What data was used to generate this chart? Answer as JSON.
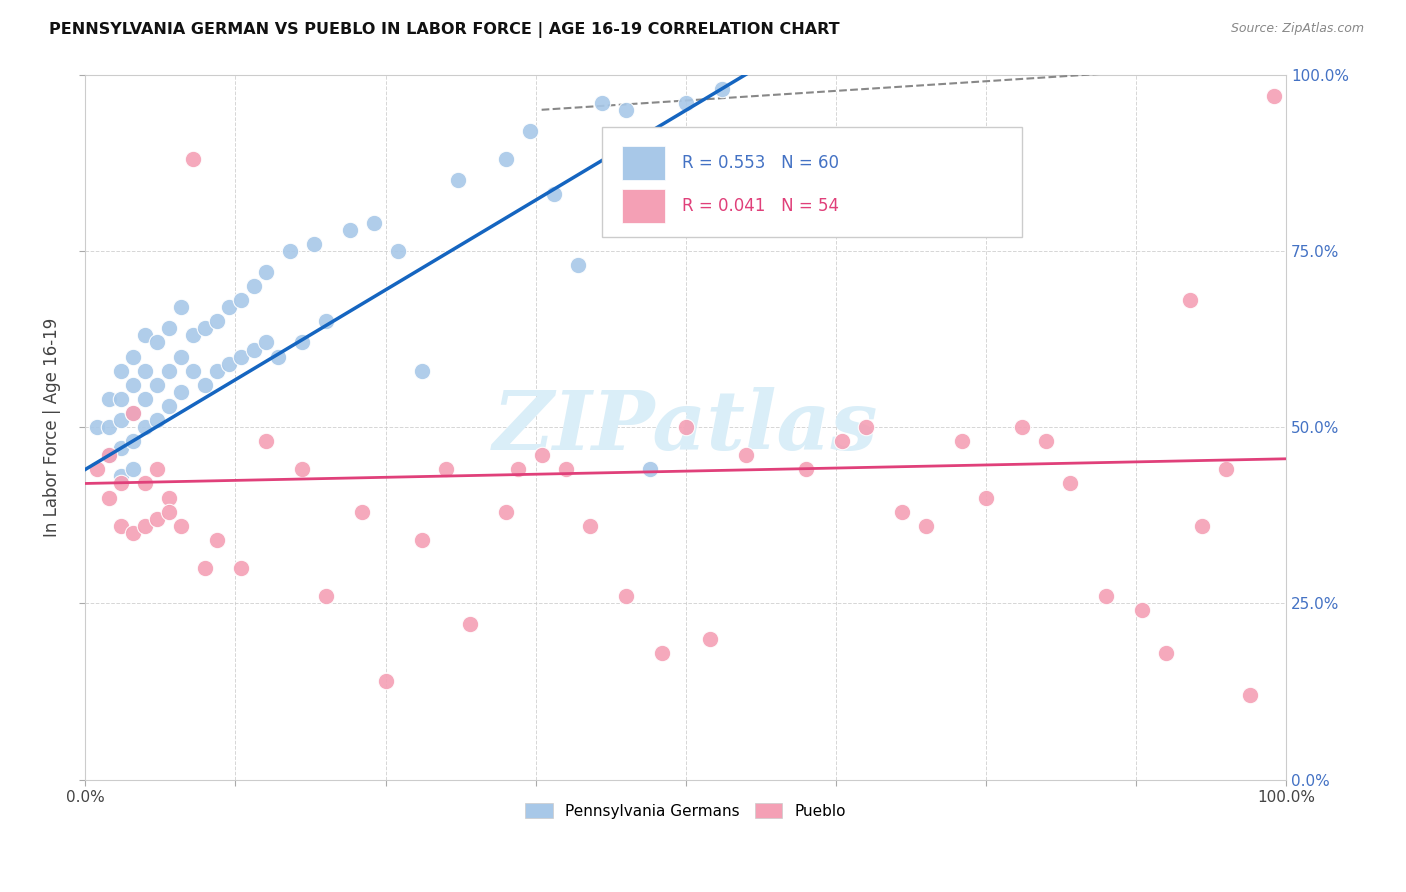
{
  "title": "PENNSYLVANIA GERMAN VS PUEBLO IN LABOR FORCE | AGE 16-19 CORRELATION CHART",
  "source": "Source: ZipAtlas.com",
  "ylabel": "In Labor Force | Age 16-19",
  "xlim": [
    0,
    1
  ],
  "ylim": [
    0,
    1
  ],
  "xticks": [
    0,
    0.125,
    0.25,
    0.375,
    0.5,
    0.625,
    0.75,
    0.875,
    1.0
  ],
  "yticks": [
    0,
    0.25,
    0.5,
    0.75,
    1.0
  ],
  "right_ytick_labels": [
    "0.0%",
    "25.0%",
    "50.0%",
    "75.0%",
    "100.0%"
  ],
  "left_ytick_labels": [
    "",
    "",
    "",
    "",
    ""
  ],
  "blue_color": "#a8c8e8",
  "pink_color": "#f4a0b5",
  "blue_line_color": "#1565c0",
  "pink_line_color": "#e0407a",
  "watermark_color": "#daeef8",
  "blue_scatter_x": [
    0.01,
    0.02,
    0.02,
    0.02,
    0.03,
    0.03,
    0.03,
    0.03,
    0.03,
    0.04,
    0.04,
    0.04,
    0.04,
    0.04,
    0.05,
    0.05,
    0.05,
    0.05,
    0.06,
    0.06,
    0.06,
    0.07,
    0.07,
    0.07,
    0.08,
    0.08,
    0.08,
    0.09,
    0.09,
    0.1,
    0.1,
    0.11,
    0.11,
    0.12,
    0.12,
    0.13,
    0.13,
    0.14,
    0.14,
    0.15,
    0.15,
    0.16,
    0.17,
    0.18,
    0.19,
    0.2,
    0.22,
    0.24,
    0.26,
    0.28,
    0.31,
    0.35,
    0.37,
    0.39,
    0.41,
    0.43,
    0.45,
    0.47,
    0.5,
    0.53
  ],
  "blue_scatter_y": [
    0.5,
    0.46,
    0.5,
    0.54,
    0.43,
    0.47,
    0.51,
    0.54,
    0.58,
    0.44,
    0.48,
    0.52,
    0.56,
    0.6,
    0.5,
    0.54,
    0.58,
    0.63,
    0.51,
    0.56,
    0.62,
    0.53,
    0.58,
    0.64,
    0.55,
    0.6,
    0.67,
    0.58,
    0.63,
    0.56,
    0.64,
    0.58,
    0.65,
    0.59,
    0.67,
    0.6,
    0.68,
    0.61,
    0.7,
    0.62,
    0.72,
    0.6,
    0.75,
    0.62,
    0.76,
    0.65,
    0.78,
    0.79,
    0.75,
    0.58,
    0.85,
    0.88,
    0.92,
    0.83,
    0.73,
    0.96,
    0.95,
    0.44,
    0.96,
    0.98
  ],
  "pink_scatter_x": [
    0.01,
    0.02,
    0.02,
    0.03,
    0.03,
    0.04,
    0.04,
    0.05,
    0.05,
    0.06,
    0.06,
    0.07,
    0.07,
    0.08,
    0.09,
    0.1,
    0.11,
    0.13,
    0.15,
    0.18,
    0.2,
    0.23,
    0.25,
    0.28,
    0.3,
    0.32,
    0.35,
    0.36,
    0.38,
    0.4,
    0.42,
    0.45,
    0.48,
    0.5,
    0.52,
    0.55,
    0.6,
    0.63,
    0.65,
    0.68,
    0.7,
    0.73,
    0.75,
    0.78,
    0.8,
    0.82,
    0.85,
    0.88,
    0.9,
    0.92,
    0.93,
    0.95,
    0.97,
    0.99
  ],
  "pink_scatter_y": [
    0.44,
    0.4,
    0.46,
    0.36,
    0.42,
    0.35,
    0.52,
    0.36,
    0.42,
    0.37,
    0.44,
    0.4,
    0.38,
    0.36,
    0.88,
    0.3,
    0.34,
    0.3,
    0.48,
    0.44,
    0.26,
    0.38,
    0.14,
    0.34,
    0.44,
    0.22,
    0.38,
    0.44,
    0.46,
    0.44,
    0.36,
    0.26,
    0.18,
    0.5,
    0.2,
    0.46,
    0.44,
    0.48,
    0.5,
    0.38,
    0.36,
    0.48,
    0.4,
    0.5,
    0.48,
    0.42,
    0.26,
    0.24,
    0.18,
    0.68,
    0.36,
    0.44,
    0.12,
    0.97
  ],
  "blue_line_x0": 0.0,
  "blue_line_x1": 0.55,
  "blue_line_y0": 0.44,
  "blue_line_y1": 1.0,
  "pink_line_x0": 0.0,
  "pink_line_x1": 1.0,
  "pink_line_y0": 0.42,
  "pink_line_y1": 0.455,
  "dashed_line_x0": 0.38,
  "dashed_line_x1": 1.02,
  "dashed_line_y0": 0.95,
  "dashed_line_y1": 1.02,
  "legend_text_blue": "R = 0.553   N = 60",
  "legend_text_pink": "R = 0.041   N = 54",
  "legend_bottom_blue": "Pennsylvania Germans",
  "legend_bottom_pink": "Pueblo"
}
